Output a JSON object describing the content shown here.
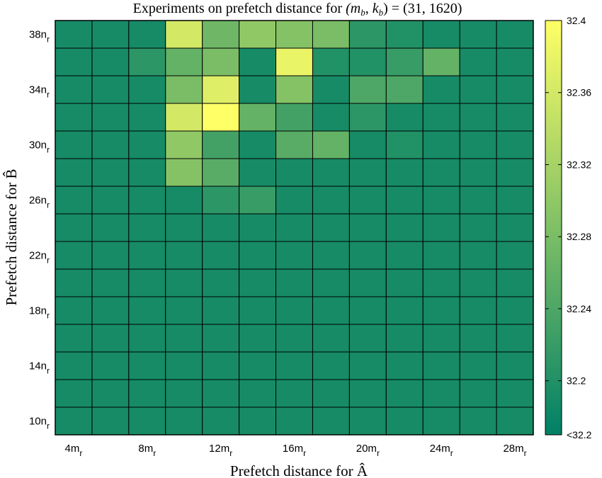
{
  "chart_data": {
    "type": "heatmap",
    "title": "Experiments on prefetch distance for (m_b, k_b) = (31, 1620)",
    "title_parts": {
      "prefix": "Experiments on prefetch distance for ",
      "m": "m",
      "k": "k",
      "sub": "b",
      "values": "(31, 1620)"
    },
    "xlabel": "Prefetch distance for Â",
    "ylabel": "Prefetch distance for B̂",
    "x_ticks": [
      {
        "num": "4",
        "sub": "r",
        "unit": "m"
      },
      {
        "num": "8",
        "sub": "r",
        "unit": "m"
      },
      {
        "num": "12",
        "sub": "r",
        "unit": "m"
      },
      {
        "num": "16",
        "sub": "r",
        "unit": "m"
      },
      {
        "num": "20",
        "sub": "r",
        "unit": "m"
      },
      {
        "num": "24",
        "sub": "r",
        "unit": "m"
      },
      {
        "num": "28",
        "sub": "r",
        "unit": "m"
      }
    ],
    "y_ticks": [
      {
        "num": "38",
        "sub": "r",
        "unit": "n"
      },
      {
        "num": "34",
        "sub": "r",
        "unit": "n"
      },
      {
        "num": "30",
        "sub": "r",
        "unit": "n"
      },
      {
        "num": "26",
        "sub": "r",
        "unit": "n"
      },
      {
        "num": "22",
        "sub": "r",
        "unit": "n"
      },
      {
        "num": "18",
        "sub": "r",
        "unit": "n"
      },
      {
        "num": "14",
        "sub": "r",
        "unit": "n"
      },
      {
        "num": "10",
        "sub": "r",
        "unit": "n"
      }
    ],
    "x_values": [
      4,
      6,
      8,
      10,
      12,
      14,
      16,
      18,
      20,
      22,
      24,
      26,
      28
    ],
    "y_values": [
      38,
      36,
      34,
      32,
      30,
      28,
      26,
      24,
      22,
      20,
      18,
      16,
      14,
      12,
      10
    ],
    "matrix": [
      [
        32.19,
        32.19,
        32.19,
        32.36,
        32.27,
        32.3,
        32.29,
        32.28,
        32.21,
        32.2,
        32.19,
        32.19,
        32.19
      ],
      [
        32.19,
        32.19,
        32.21,
        32.26,
        32.28,
        32.19,
        32.38,
        32.2,
        32.2,
        32.22,
        32.26,
        32.19,
        32.19
      ],
      [
        32.19,
        32.19,
        32.19,
        32.28,
        32.37,
        32.19,
        32.29,
        32.19,
        32.24,
        32.24,
        32.19,
        32.19,
        32.19
      ],
      [
        32.19,
        32.19,
        32.19,
        32.36,
        32.4,
        32.26,
        32.23,
        32.19,
        32.21,
        32.19,
        32.19,
        32.19,
        32.19
      ],
      [
        32.19,
        32.19,
        32.19,
        32.3,
        32.23,
        32.19,
        32.25,
        32.26,
        32.19,
        32.2,
        32.19,
        32.19,
        32.19
      ],
      [
        32.19,
        32.19,
        32.19,
        32.29,
        32.25,
        32.19,
        32.19,
        32.19,
        32.19,
        32.19,
        32.19,
        32.19,
        32.19
      ],
      [
        32.19,
        32.19,
        32.19,
        32.19,
        32.21,
        32.22,
        32.19,
        32.19,
        32.19,
        32.19,
        32.19,
        32.19,
        32.19
      ],
      [
        32.19,
        32.19,
        32.19,
        32.19,
        32.19,
        32.19,
        32.19,
        32.19,
        32.19,
        32.19,
        32.19,
        32.19,
        32.19
      ],
      [
        32.19,
        32.19,
        32.19,
        32.19,
        32.19,
        32.19,
        32.19,
        32.19,
        32.19,
        32.19,
        32.19,
        32.19,
        32.19
      ],
      [
        32.19,
        32.19,
        32.19,
        32.19,
        32.19,
        32.19,
        32.19,
        32.19,
        32.19,
        32.19,
        32.19,
        32.19,
        32.19
      ],
      [
        32.19,
        32.19,
        32.19,
        32.19,
        32.19,
        32.19,
        32.19,
        32.19,
        32.19,
        32.19,
        32.19,
        32.19,
        32.19
      ],
      [
        32.19,
        32.19,
        32.19,
        32.19,
        32.19,
        32.19,
        32.19,
        32.19,
        32.19,
        32.19,
        32.19,
        32.19,
        32.19
      ],
      [
        32.19,
        32.19,
        32.19,
        32.19,
        32.19,
        32.19,
        32.19,
        32.19,
        32.19,
        32.19,
        32.19,
        32.19,
        32.19
      ],
      [
        32.19,
        32.19,
        32.19,
        32.19,
        32.19,
        32.19,
        32.19,
        32.19,
        32.19,
        32.19,
        32.19,
        32.19,
        32.19
      ],
      [
        32.19,
        32.19,
        32.19,
        32.19,
        32.19,
        32.19,
        32.19,
        32.19,
        32.19,
        32.19,
        32.19,
        32.19,
        32.19
      ]
    ],
    "colorbar": {
      "range": [
        32.17,
        32.4
      ],
      "ticks": [
        "32.4",
        "32.36",
        "32.32",
        "32.28",
        "32.24",
        "32.2",
        "<32.2"
      ],
      "tick_values": [
        32.4,
        32.36,
        32.32,
        32.28,
        32.24,
        32.2,
        32.17
      ],
      "colormap": "summer",
      "low_color": "#008066",
      "high_color": "#ffff66"
    },
    "grid": true,
    "legend": "colorbar-right"
  }
}
